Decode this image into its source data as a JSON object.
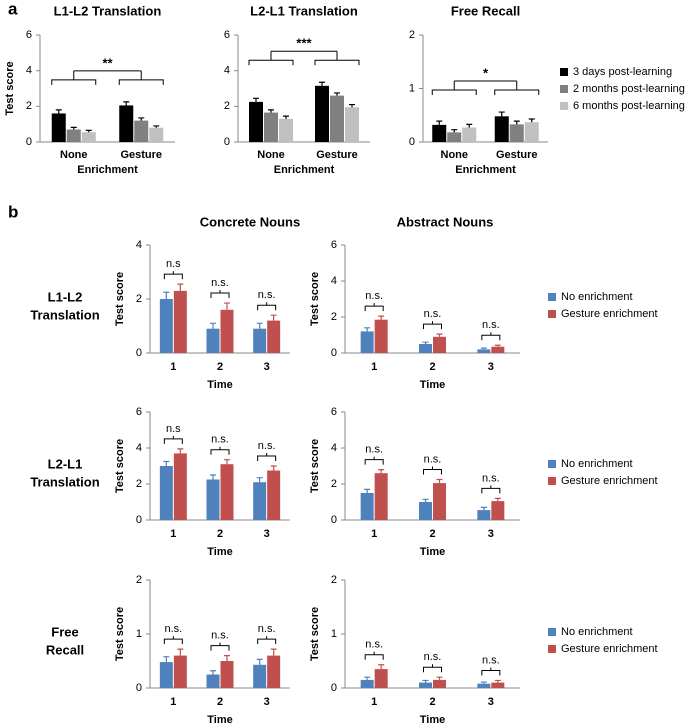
{
  "panel_labels": [
    "a",
    "b"
  ],
  "column_titles": [
    "Concrete Nouns",
    "Abstract Nouns"
  ],
  "row_labels": [
    [
      "L1-L2",
      "Translation"
    ],
    [
      "L2-L1",
      "Translation"
    ],
    [
      "Free",
      "Recall"
    ]
  ],
  "chart_data": [
    {
      "type": "bar",
      "title": "L1-L2 Translation",
      "y_label": "Test score",
      "x_label": "Enrichment",
      "categories": [
        "None",
        "Gesture"
      ],
      "ylim": [
        0,
        6
      ],
      "yticks": [
        0,
        2,
        4,
        6
      ],
      "annotations": [
        "**"
      ],
      "series": [
        {
          "color": "#000000",
          "values": [
            1.6,
            2.05
          ],
          "errors": [
            0.2,
            0.2
          ]
        },
        {
          "color": "#808080",
          "values": [
            0.7,
            1.2
          ],
          "errors": [
            0.12,
            0.15
          ]
        },
        {
          "color": "#c0c0c0",
          "values": [
            0.55,
            0.8
          ],
          "errors": [
            0.1,
            0.1
          ]
        }
      ]
    },
    {
      "type": "bar",
      "title": "L2-L1 Translation",
      "x_label": "Enrichment",
      "categories": [
        "None",
        "Gesture"
      ],
      "ylim": [
        0,
        6
      ],
      "yticks": [
        0,
        2,
        4,
        6
      ],
      "annotations": [
        "***"
      ],
      "series": [
        {
          "color": "#000000",
          "values": [
            2.25,
            3.15
          ],
          "errors": [
            0.2,
            0.2
          ]
        },
        {
          "color": "#808080",
          "values": [
            1.65,
            2.6
          ],
          "errors": [
            0.15,
            0.15
          ]
        },
        {
          "color": "#c0c0c0",
          "values": [
            1.3,
            1.95
          ],
          "errors": [
            0.15,
            0.15
          ]
        }
      ]
    },
    {
      "type": "bar",
      "title": "Free Recall",
      "x_label": "Enrichment",
      "legend": true,
      "categories": [
        "None",
        "Gesture"
      ],
      "ylim": [
        0,
        2
      ],
      "yticks": [
        0,
        1,
        2
      ],
      "annotations": [
        "*"
      ],
      "series": [
        {
          "name": "3 days post-learning",
          "color": "#000000",
          "values": [
            0.32,
            0.48
          ],
          "errors": [
            0.07,
            0.08
          ]
        },
        {
          "name": "2 months post-learning",
          "color": "#808080",
          "values": [
            0.18,
            0.33
          ],
          "errors": [
            0.05,
            0.06
          ]
        },
        {
          "name": "6 months post-learning",
          "color": "#c0c0c0",
          "values": [
            0.27,
            0.37
          ],
          "errors": [
            0.06,
            0.06
          ]
        }
      ]
    },
    {
      "type": "bar",
      "y_label": "Test score",
      "x_label": "Time",
      "categories": [
        "1",
        "2",
        "3"
      ],
      "ylim": [
        0,
        4
      ],
      "yticks": [
        0,
        2,
        4
      ],
      "annotations": [
        "n.s",
        "n.s.",
        "n.s."
      ],
      "series": [
        {
          "color": "#4f81bd",
          "values": [
            2.0,
            0.9,
            0.9
          ],
          "errors": [
            0.25,
            0.2,
            0.2
          ]
        },
        {
          "color": "#c0504d",
          "values": [
            2.3,
            1.6,
            1.2
          ],
          "errors": [
            0.25,
            0.25,
            0.2
          ]
        }
      ]
    },
    {
      "type": "bar",
      "y_label": "Test score",
      "x_label": "Time",
      "categories": [
        "1",
        "2",
        "3"
      ],
      "legend": true,
      "ylim": [
        0,
        6
      ],
      "yticks": [
        0,
        2,
        4,
        6
      ],
      "annotations": [
        "n.s.",
        "n.s.",
        "n.s."
      ],
      "series": [
        {
          "name": "No enrichment",
          "color": "#4f81bd",
          "values": [
            1.2,
            0.5,
            0.2
          ],
          "errors": [
            0.2,
            0.1,
            0.07
          ]
        },
        {
          "name": "Gesture enrichment",
          "color": "#c0504d",
          "values": [
            1.85,
            0.9,
            0.35
          ],
          "errors": [
            0.2,
            0.15,
            0.08
          ]
        }
      ]
    },
    {
      "type": "bar",
      "y_label": "Test score",
      "x_label": "Time",
      "categories": [
        "1",
        "2",
        "3"
      ],
      "ylim": [
        0,
        6
      ],
      "yticks": [
        0,
        2,
        4,
        6
      ],
      "annotations": [
        "n.s",
        "n.s.",
        "n.s."
      ],
      "series": [
        {
          "color": "#4f81bd",
          "values": [
            3.0,
            2.25,
            2.1
          ],
          "errors": [
            0.25,
            0.25,
            0.25
          ]
        },
        {
          "color": "#c0504d",
          "values": [
            3.7,
            3.1,
            2.75
          ],
          "errors": [
            0.25,
            0.25,
            0.25
          ]
        }
      ]
    },
    {
      "type": "bar",
      "y_label": "Test score",
      "x_label": "Time",
      "categories": [
        "1",
        "2",
        "3"
      ],
      "legend": true,
      "ylim": [
        0,
        6
      ],
      "yticks": [
        0,
        2,
        4,
        6
      ],
      "annotations": [
        "n.s.",
        "n.s.",
        "n.s."
      ],
      "series": [
        {
          "name": "No enrichment",
          "color": "#4f81bd",
          "values": [
            1.5,
            1.0,
            0.55
          ],
          "errors": [
            0.2,
            0.15,
            0.15
          ]
        },
        {
          "name": "Gesture enrichment",
          "color": "#c0504d",
          "values": [
            2.6,
            2.05,
            1.05
          ],
          "errors": [
            0.2,
            0.2,
            0.15
          ]
        }
      ]
    },
    {
      "type": "bar",
      "y_label": "Test score",
      "x_label": "Time",
      "categories": [
        "1",
        "2",
        "3"
      ],
      "ylim": [
        0,
        2
      ],
      "yticks": [
        0,
        1,
        2
      ],
      "annotations": [
        "n.s.",
        "n.s.",
        "n.s."
      ],
      "series": [
        {
          "color": "#4f81bd",
          "values": [
            0.48,
            0.25,
            0.43
          ],
          "errors": [
            0.1,
            0.07,
            0.1
          ]
        },
        {
          "color": "#c0504d",
          "values": [
            0.6,
            0.5,
            0.6
          ],
          "errors": [
            0.12,
            0.1,
            0.12
          ]
        }
      ]
    },
    {
      "type": "bar",
      "y_label": "Test score",
      "x_label": "Time",
      "categories": [
        "1",
        "2",
        "3"
      ],
      "legend": true,
      "ylim": [
        0,
        2
      ],
      "yticks": [
        0,
        1,
        2
      ],
      "annotations": [
        "n.s.",
        "n.s.",
        "n.s."
      ],
      "series": [
        {
          "name": "No enrichment",
          "color": "#4f81bd",
          "values": [
            0.15,
            0.1,
            0.08
          ],
          "errors": [
            0.05,
            0.04,
            0.03
          ]
        },
        {
          "name": "Gesture enrichment",
          "color": "#c0504d",
          "values": [
            0.35,
            0.15,
            0.1
          ],
          "errors": [
            0.08,
            0.05,
            0.04
          ]
        }
      ]
    }
  ]
}
